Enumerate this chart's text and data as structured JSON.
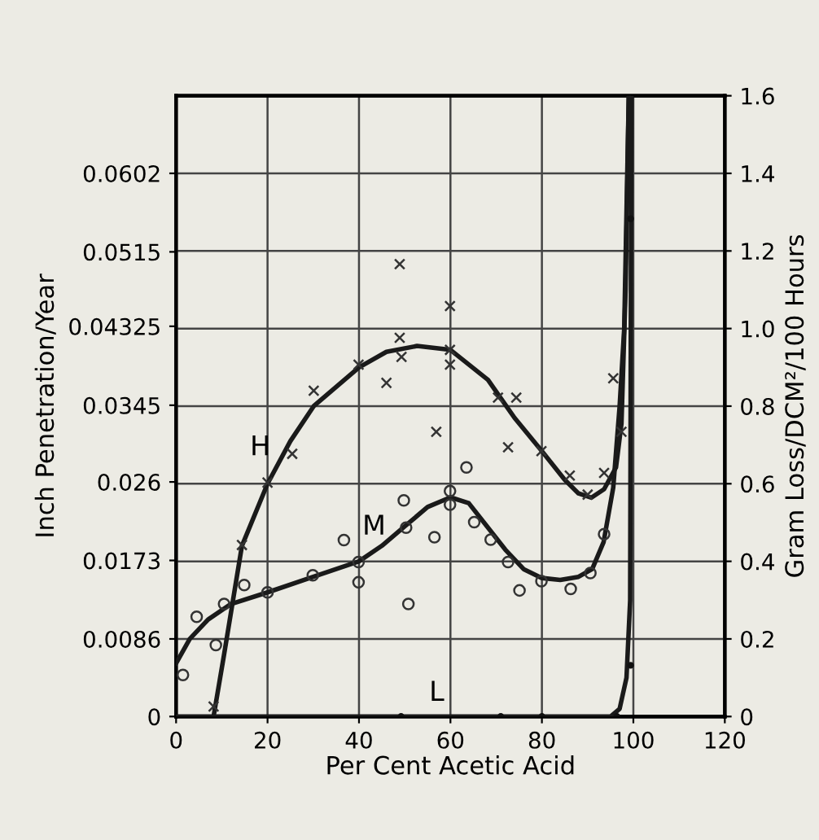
{
  "chart_data": {
    "type": "line",
    "xlabel": "Per Cent Acetic Acid",
    "ylabel": "Inch Penetration/Year",
    "y2label": "Gram Loss/DCM²/100 Hours",
    "xlim": [
      0,
      120
    ],
    "xticks": [
      0,
      20,
      40,
      60,
      80,
      100,
      120
    ],
    "ylim": [
      0,
      0.0688
    ],
    "yticks": [
      0,
      0.0086,
      0.0173,
      0.026,
      0.0345,
      0.04325,
      0.0515,
      0.0602
    ],
    "y2lim": [
      0,
      1.6
    ],
    "y2ticks": [
      0,
      0.2,
      0.4,
      0.6,
      0.8,
      {
        "value": 1,
        "label": "1.0"
      },
      1.2,
      1.4,
      1.6
    ],
    "grid": true,
    "legend": false,
    "series": [
      {
        "name": "H",
        "axis": "y2",
        "color": "#1a1a1a",
        "marker": "none",
        "line_style": "solid",
        "x": [
          8.2,
          10.5,
          14.4,
          20,
          25,
          30.1,
          40,
          46,
          52.7,
          60,
          68.2,
          74,
          80,
          85,
          88,
          90.8,
          93.6,
          96.2,
          97.4,
          98.3,
          99
        ],
        "values": [
          0.0,
          0.16,
          0.44,
          0.6,
          0.71,
          0.8,
          0.9,
          0.94,
          0.955,
          0.945,
          0.868,
          0.77,
          0.684,
          0.61,
          0.575,
          0.564,
          0.586,
          0.642,
          0.755,
          1.1,
          1.6
        ]
      },
      {
        "name": "M",
        "axis": "y2",
        "color": "#1a1a1a",
        "marker": "none",
        "line_style": "solid",
        "x": [
          0,
          3,
          7,
          12,
          20,
          30,
          40,
          45,
          50,
          55,
          60,
          64,
          68,
          72,
          76,
          80,
          84,
          88,
          91,
          93.5,
          95.6,
          97,
          98,
          99
        ],
        "values": [
          0.137,
          0.2,
          0.25,
          0.29,
          0.32,
          0.36,
          0.4,
          0.44,
          0.49,
          0.54,
          0.565,
          0.55,
          0.49,
          0.43,
          0.38,
          0.357,
          0.352,
          0.36,
          0.38,
          0.45,
          0.59,
          0.8,
          1.0,
          1.6
        ]
      },
      {
        "name": "L",
        "axis": "y2",
        "color": "#1a1a1a",
        "marker": "none",
        "line_style": "solid",
        "x": [
          0,
          95,
          97,
          98.5,
          99.3,
          99.5,
          99.6
        ],
        "values": [
          0.0,
          0.0,
          0.02,
          0.1,
          0.3,
          1.3,
          1.6
        ]
      },
      {
        "type": "scatter",
        "axis": "y2",
        "color": "#333333",
        "marker": "cross",
        "x": [
          48.9,
          59.9,
          48.9,
          49.3,
          59.9,
          59.9,
          39.9,
          46,
          30.1,
          70.4,
          74.4,
          25.4,
          20,
          14.4,
          8.2,
          56.9,
          72.6,
          79.9,
          86.1,
          93.6,
          90,
          95.6,
          97.4
        ],
        "values": [
          1.166,
          1.058,
          0.976,
          0.927,
          0.945,
          0.907,
          0.907,
          0.86,
          0.84,
          0.822,
          0.822,
          0.677,
          0.603,
          0.442,
          0.026,
          0.734,
          0.694,
          0.684,
          0.621,
          0.628,
          0.572,
          0.872,
          0.734
        ]
      },
      {
        "type": "scatter",
        "axis": "y2",
        "color": "#333333",
        "marker": "circle",
        "x": [
          1.5,
          4.5,
          8.7,
          10.5,
          14.9,
          20,
          29.9,
          36.7,
          39.9,
          39.9,
          49.8,
          50.3,
          50.8,
          56.5,
          59.9,
          59.9,
          63.5,
          65.2,
          68.8,
          72.6,
          75.1,
          79.9,
          86.3,
          90.6,
          93.6
        ],
        "values": [
          0.107,
          0.257,
          0.184,
          0.29,
          0.339,
          0.32,
          0.364,
          0.455,
          0.398,
          0.346,
          0.557,
          0.487,
          0.29,
          0.462,
          0.581,
          0.546,
          0.642,
          0.501,
          0.456,
          0.398,
          0.325,
          0.349,
          0.329,
          0.37,
          0.47
        ]
      },
      {
        "type": "scatter",
        "axis": "y2",
        "color": "#111111",
        "marker": "dot",
        "x": [
          49.2,
          71,
          80,
          96.4,
          99.4,
          99.4
        ],
        "values": [
          0.0,
          0.0,
          0.0,
          0.0,
          0.132,
          1.283
        ]
      }
    ]
  }
}
